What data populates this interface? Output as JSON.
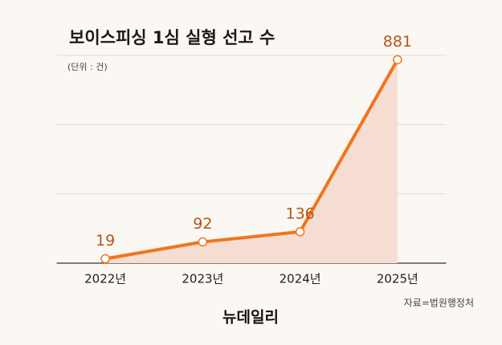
{
  "chart_data": {
    "type": "line",
    "title": "보이스피싱 1심 실형 선고 수",
    "subtitle": "(단위 : 건)",
    "categories": [
      "2022년",
      "2023년",
      "2024년",
      "2025년"
    ],
    "series": [
      {
        "name": "실형 선고 수",
        "color": "#f2741f",
        "values": [
          19,
          92,
          136,
          881
        ]
      }
    ],
    "area_color": "#f5ddd1",
    "ylim": [
      0,
      900
    ],
    "yticks": [
      0,
      300,
      600,
      900
    ],
    "grid": true,
    "source": "자료=법원행정처",
    "logo": "뉴데일리"
  }
}
